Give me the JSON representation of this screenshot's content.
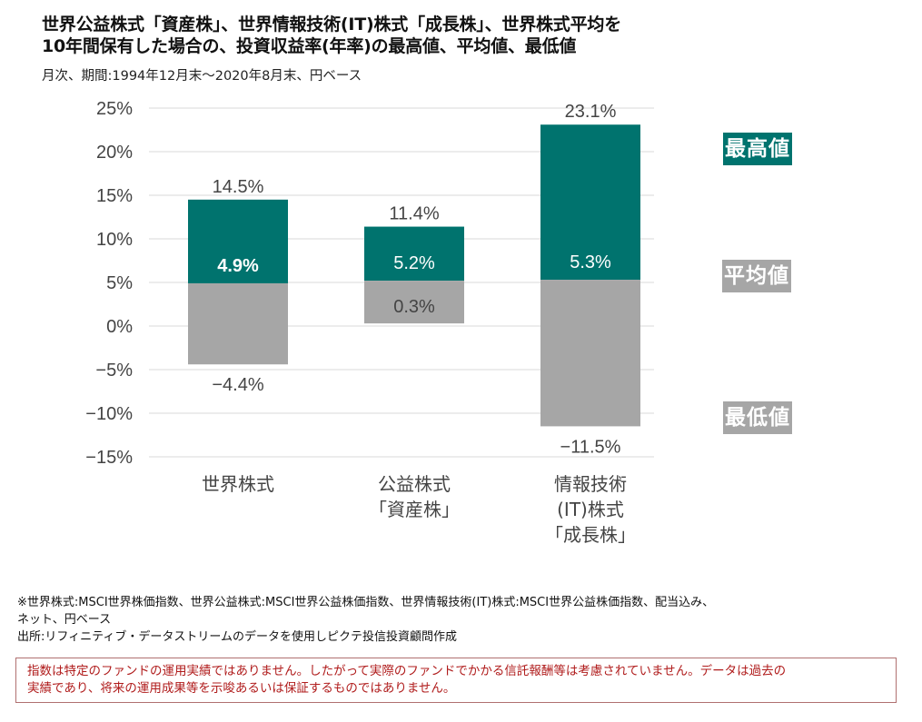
{
  "header": {
    "title_line1": "世界公益株式「資産株」、世界情報技術(IT)株式「成長株」、世界株式平均を",
    "title_line2": "10年間保有した場合の、投資収益率(年率)の最高値、平均値、最低値",
    "subtitle": "月次、期間:1994年12月末～2020年8月末、円ベース"
  },
  "colors": {
    "max_bar": "#00736e",
    "min_bar": "#a6a6a6",
    "gridline": "#d9d9d9",
    "axis_text": "#444444",
    "disclaimer_text": "#b01c1c"
  },
  "chart_data": {
    "type": "bar",
    "subtype": "floating-range",
    "title": "世界公益株式「資産株」、世界情報技術(IT)株式「成長株」、世界株式平均を10年間保有した場合の、投資収益率(年率)の最高値、平均値、最低値",
    "ylim": [
      -15,
      25
    ],
    "yticks": [
      25,
      20,
      15,
      10,
      5,
      0,
      -5,
      -10,
      -15
    ],
    "ytick_labels": [
      "25%",
      "20%",
      "15%",
      "10%",
      "5%",
      "0%",
      "−5%",
      "−10%",
      "−15%"
    ],
    "grid": true,
    "categories": [
      [
        "世界株式"
      ],
      [
        "公益株式",
        "「資産株」"
      ],
      [
        "情報技術",
        "(IT)株式",
        "「成長株」"
      ]
    ],
    "series": [
      {
        "name": "最高値",
        "values": [
          14.5,
          11.4,
          23.1
        ],
        "labels": [
          "14.5%",
          "11.4%",
          "23.1%"
        ]
      },
      {
        "name": "平均値",
        "values": [
          4.9,
          5.2,
          5.3
        ],
        "labels": [
          "4.9%",
          "5.2%",
          "5.3%"
        ]
      },
      {
        "name": "最低値",
        "values": [
          -4.4,
          0.3,
          -11.5
        ],
        "labels": [
          "−4.4%",
          "0.3%",
          "−11.5%"
        ]
      }
    ],
    "legend": {
      "placement": "right",
      "items": [
        {
          "label": "最高値",
          "color": "#00736e"
        },
        {
          "label": "平均値",
          "color": "#a6a6a6"
        },
        {
          "label": "最低値",
          "color": "#a6a6a6"
        }
      ]
    }
  },
  "notes": {
    "line1": "※世界株式:MSCI世界株価指数、世界公益株式:MSCI世界公益株価指数、世界情報技術(IT)株式:MSCI世界公益株価指数、配当込み、",
    "line2": "ネット、円ベース",
    "line3": "出所:リフィニティブ・データストリームのデータを使用しピクテ投信投資顧問作成"
  },
  "disclaimer": {
    "line1": "指数は特定のファンドの運用実績ではありません。したがって実際のファンドでかかる信託報酬等は考慮されていません。データは過去の",
    "line2": "実績であり、将来の運用成果等を示唆あるいは保証するものではありません。"
  }
}
